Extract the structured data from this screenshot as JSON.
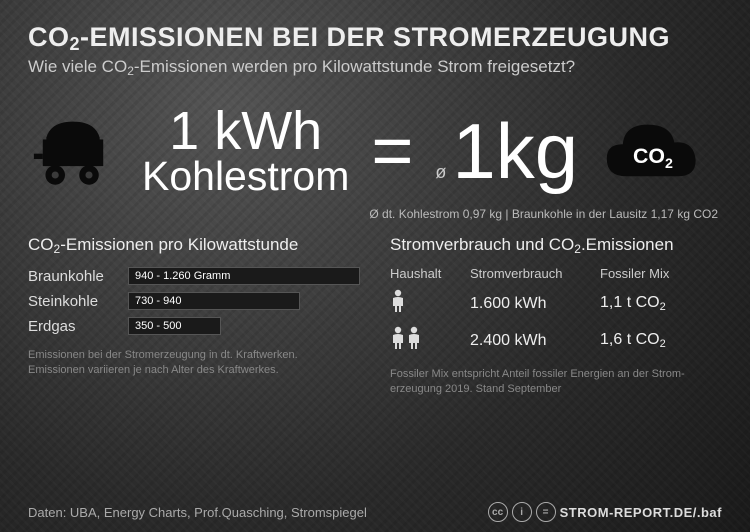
{
  "title_pre": "CO",
  "title_sub": "2",
  "title_post": "-EMISSIONEN BEI DER STROMERZEUGUNG",
  "subtitle_pre": "Wie viele CO",
  "subtitle_post": "-Emissionen werden pro Kilowattstunde Strom freigesetzt?",
  "hero": {
    "kwh": "1 kWh",
    "kohlestrom": "Kohlestrom",
    "equals": "=",
    "diameter": "ø",
    "kg": "1kg",
    "co2_label": "CO",
    "co2_sub": "2",
    "note": "Ø dt. Kohlestrom 0,97 kg | Braunkohle in der Lausitz 1,17 kg CO2"
  },
  "chart": {
    "title_pre": "CO",
    "title_post": "-Emissionen pro Kilowattstunde",
    "max": 1260,
    "bars": [
      {
        "label": "Braunkohle",
        "value": "940 - 1.260 Gramm",
        "pct": 100
      },
      {
        "label": "Steinkohle",
        "value": "730 - 940",
        "pct": 74
      },
      {
        "label": "Erdgas",
        "value": "350 - 500",
        "pct": 40
      }
    ],
    "note1": "Emissionen bei der Stromerzeugung in dt. Kraftwerken.",
    "note2": "Emissionen variieren je nach Alter des Kraftwerkes.",
    "bar_bg": "#1a1a1a",
    "bar_border": "#555"
  },
  "table": {
    "title_pre": "Stromverbrauch und CO",
    "title_post": "Emissionen",
    "h1": "Haushalt",
    "h2": "Stromverbrauch",
    "h3": "Fossiler Mix",
    "rows": [
      {
        "persons": 1,
        "kwh": "1.600 kWh",
        "co2_v": "1,1 t CO",
        "co2_s": "2"
      },
      {
        "persons": 2,
        "kwh": "2.400 kWh",
        "co2_v": "1,6 t CO",
        "co2_s": "2"
      }
    ],
    "note": "Fossiler Mix entspricht Anteil fossiler Energien an der Strom-erzeugung 2019. Stand September"
  },
  "footer": {
    "data": "Daten: UBA, Energy Charts, Prof.Quasching, Stromspiegel",
    "source": "STROM-REPORT.DE/.baf",
    "cc": [
      "cc",
      "i",
      "="
    ]
  },
  "colors": {
    "text_main": "#ddd",
    "text_bright": "#fff",
    "text_dim": "#888",
    "icon": "#0a0a0a"
  }
}
